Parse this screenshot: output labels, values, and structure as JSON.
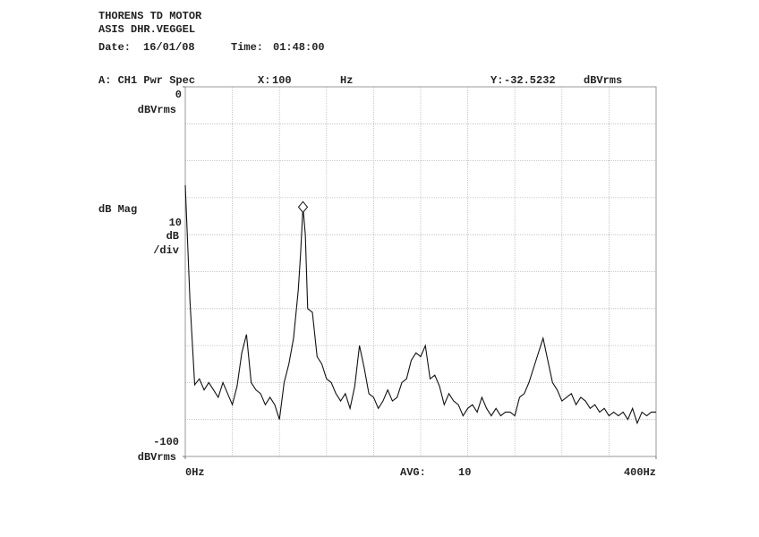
{
  "chart_data": {
    "type": "line",
    "title_lines": [
      "THORENS TD MOTOR",
      "ASIS DHR.VEGGEL"
    ],
    "date_label": "Date:",
    "date": "16/01/08",
    "time_label": "Time:",
    "time": "01:48:00",
    "trace": "A: CH1 Pwr Spec",
    "marker": {
      "x_label": "X:",
      "x": 100,
      "x_unit": "Hz",
      "y_label": "Y:",
      "y": -32.5232,
      "y_unit": "dBVrms"
    },
    "y_top_unit": "dBVrms",
    "y_bottom_unit": "dBVrms",
    "scale": {
      "label": "dB Mag",
      "per_div": 10,
      "unit": "dB",
      "div": "/div"
    },
    "avg_label": "AVG:",
    "avg": 10,
    "xlim": [
      0,
      400
    ],
    "ylim": [
      -100,
      0
    ],
    "xticks": [
      {
        "value": 0,
        "label": "0Hz"
      },
      {
        "value": 400,
        "label": "400Hz"
      }
    ],
    "yticks": [
      0,
      -100
    ],
    "grid": true,
    "x": [
      0,
      4,
      8,
      12,
      16,
      20,
      24,
      28,
      32,
      36,
      40,
      44,
      48,
      52,
      56,
      60,
      64,
      68,
      72,
      76,
      80,
      84,
      88,
      92,
      96,
      98,
      100,
      102,
      104,
      108,
      112,
      116,
      120,
      124,
      128,
      132,
      136,
      140,
      144,
      148,
      152,
      156,
      160,
      164,
      168,
      172,
      176,
      180,
      184,
      188,
      192,
      196,
      200,
      204,
      208,
      212,
      216,
      220,
      224,
      228,
      232,
      236,
      240,
      244,
      248,
      252,
      256,
      260,
      264,
      268,
      272,
      276,
      280,
      284,
      288,
      292,
      296,
      300,
      304,
      308,
      312,
      316,
      320,
      324,
      328,
      332,
      336,
      340,
      344,
      348,
      352,
      356,
      360,
      364,
      368,
      372,
      376,
      380,
      384,
      388,
      392,
      396,
      400
    ],
    "series": [
      {
        "color": "#111111",
        "values": [
          -26.6,
          -58,
          -80.6,
          -79,
          -82,
          -80,
          -82,
          -84,
          -80,
          -83,
          -86,
          -81,
          -72,
          -67,
          -80,
          -82,
          -83,
          -86,
          -84,
          -86,
          -90,
          -80,
          -75,
          -68,
          -55,
          -45,
          -32.5,
          -40,
          -60,
          -61,
          -73,
          -75,
          -79,
          -80,
          -83,
          -85,
          -83,
          -87,
          -81,
          -70,
          -76,
          -83,
          -84,
          -87,
          -85,
          -82,
          -85,
          -84,
          -80,
          -79,
          -74,
          -72,
          -73,
          -70,
          -79,
          -78,
          -81,
          -86,
          -83,
          -85,
          -86,
          -89,
          -87,
          -86,
          -88,
          -84,
          -87,
          -89,
          -87,
          -89,
          -88,
          -88,
          -89,
          -84,
          -83,
          -80,
          -76,
          -72,
          -68,
          -74,
          -80,
          -82,
          -85,
          -84,
          -83,
          -86,
          -84,
          -85,
          -87,
          -86,
          -88,
          -87,
          -89,
          -88,
          -89,
          -88,
          -90,
          -87,
          -91,
          -88,
          -89,
          -88,
          -88
        ]
      }
    ]
  }
}
